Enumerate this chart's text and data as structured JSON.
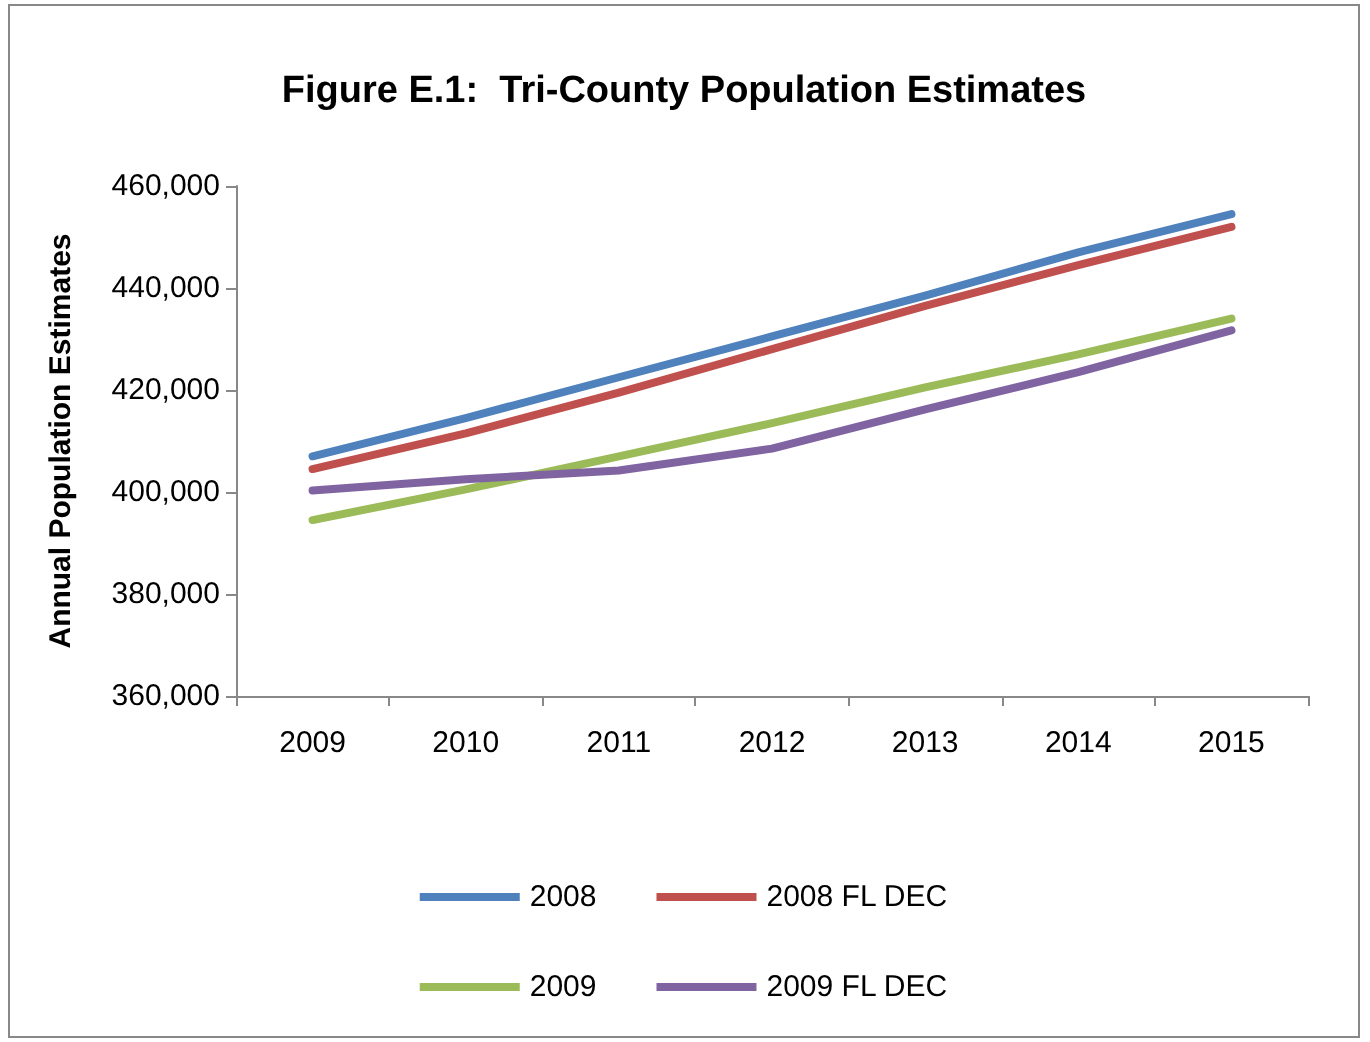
{
  "chart_data": {
    "type": "line",
    "title": "Figure E.1:  Tri-County Population Estimates",
    "ylabel": "Annual Population Estimates",
    "categories": [
      "2009",
      "2010",
      "2011",
      "2012",
      "2013",
      "2014",
      "2015"
    ],
    "series": [
      {
        "name": "2008",
        "color": "#4f81bd",
        "values": [
          407000,
          414500,
          422500,
          430500,
          438500,
          447000,
          454500
        ]
      },
      {
        "name": "2008 FL DEC",
        "color": "#c0504d",
        "values": [
          404500,
          411500,
          419500,
          428000,
          436500,
          444500,
          452000
        ]
      },
      {
        "name": "2009",
        "color": "#9bbb59",
        "values": [
          394500,
          400500,
          407000,
          413500,
          420500,
          427000,
          434000
        ]
      },
      {
        "name": "2009 FL DEC",
        "color": "#8064a2",
        "values": [
          400300,
          402500,
          404200,
          408500,
          416200,
          423500,
          431700
        ]
      }
    ],
    "ylim": [
      360000,
      460000
    ],
    "yticks": [
      {
        "value": 360000,
        "label": "360,000"
      },
      {
        "value": 380000,
        "label": "380,000"
      },
      {
        "value": 400000,
        "label": "400,000"
      },
      {
        "value": 420000,
        "label": "420,000"
      },
      {
        "value": 440000,
        "label": "440,000"
      },
      {
        "value": 460000,
        "label": "460,000"
      }
    ],
    "grid": false,
    "legend": "bottom",
    "marker": "none",
    "line_style": "solid"
  }
}
